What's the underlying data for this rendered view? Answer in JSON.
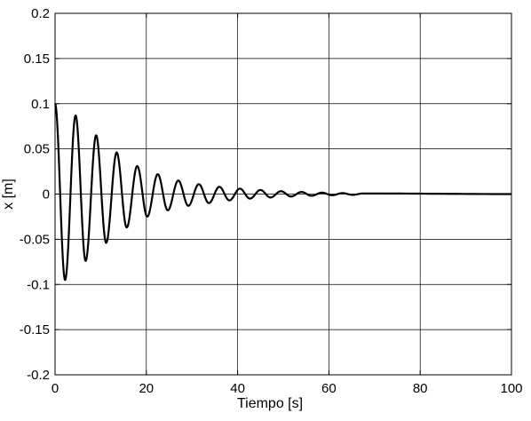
{
  "chart_data": {
    "type": "line",
    "xlabel": "Tiempo [s]",
    "ylabel": "x [m]",
    "xlim": [
      0,
      100
    ],
    "ylim": [
      -0.2,
      0.2
    ],
    "xticks": [
      0,
      20,
      40,
      60,
      80,
      100
    ],
    "yticks": [
      -0.2,
      -0.15,
      -0.1,
      -0.05,
      0,
      0.05,
      0.1,
      0.15,
      0.2
    ],
    "xtick_labels": [
      "0",
      "20",
      "40",
      "60",
      "80",
      "100"
    ],
    "ytick_labels": [
      "-0.2",
      "-0.15",
      "-0.1",
      "-0.05",
      "0",
      "0.05",
      "0.1",
      "0.15",
      "0.2"
    ],
    "grid": true,
    "line_color": "#000000",
    "series": [
      {
        "x": [
          0,
          2.2,
          4.5,
          6.7,
          9.0,
          11.2,
          13.5,
          15.7,
          18.0,
          20.2,
          22.5,
          24.7,
          27.0,
          29.2,
          31.5,
          33.7,
          36.0,
          38.2,
          40.5,
          42.7,
          45.0,
          47.2,
          49.5,
          51.7,
          54.0,
          56.2,
          58.5,
          60.7,
          63.0,
          65.2,
          67.5,
          100
        ],
        "y": [
          0.1,
          -0.095,
          0.087,
          -0.074,
          0.065,
          -0.054,
          0.046,
          -0.037,
          0.031,
          -0.025,
          0.022,
          -0.018,
          0.015,
          -0.013,
          0.011,
          -0.01,
          0.008,
          -0.007,
          0.006,
          -0.005,
          0.0045,
          -0.0038,
          0.0032,
          -0.0027,
          0.0023,
          -0.0019,
          0.0016,
          -0.0013,
          0.0011,
          -0.0009,
          0.0007,
          0.0
        ]
      }
    ]
  }
}
